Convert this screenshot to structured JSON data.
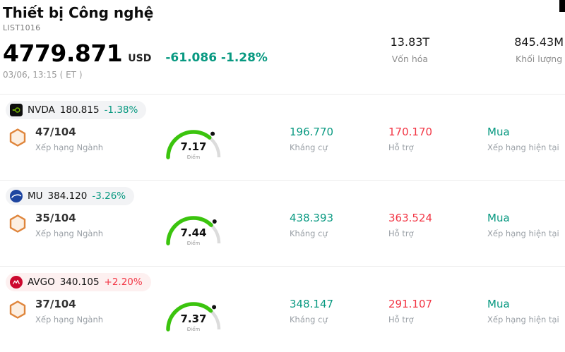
{
  "header": {
    "title": "Thiết bị Công nghệ",
    "list_id": "LIST1016",
    "price": "4779.871",
    "currency": "USD",
    "change": "-61.086 -1.28%",
    "datetime": "03/06, 13:15 ( ET )",
    "stats": [
      {
        "value": "13.83T",
        "label": "Vốn hóa"
      },
      {
        "value": "845.43M",
        "label": "Khối lượng"
      }
    ]
  },
  "labels": {
    "industry_rank": "Xếp hạng Ngành",
    "score_unit": "Điểm",
    "resistance": "Kháng cự",
    "support": "Hỗ trợ",
    "current_rating": "Xếp hạng hiện tại"
  },
  "colors": {
    "teal": "#089981",
    "red": "#f23645",
    "gauge_green": "#3bc40e",
    "gauge_track": "#dcdcdc",
    "dot": "#111111"
  },
  "stocks": [
    {
      "symbol": "NVDA",
      "price": "180.815",
      "change": "-1.38%",
      "change_color": "#089981",
      "chip_bg": "#f2f3f5",
      "rank": "47/104",
      "score": 7.17,
      "resistance": "196.770",
      "support": "170.170",
      "rating": "Mua"
    },
    {
      "symbol": "MU",
      "price": "384.120",
      "change": "-3.26%",
      "change_color": "#089981",
      "chip_bg": "#f2f3f5",
      "rank": "35/104",
      "score": 7.44,
      "resistance": "438.393",
      "support": "363.524",
      "rating": "Mua"
    },
    {
      "symbol": "AVGO",
      "price": "340.105",
      "change": "+2.20%",
      "change_color": "#f23645",
      "chip_bg": "#fdf0f0",
      "rank": "37/104",
      "score": 7.37,
      "resistance": "348.147",
      "support": "291.107",
      "rating": "Mua"
    }
  ]
}
